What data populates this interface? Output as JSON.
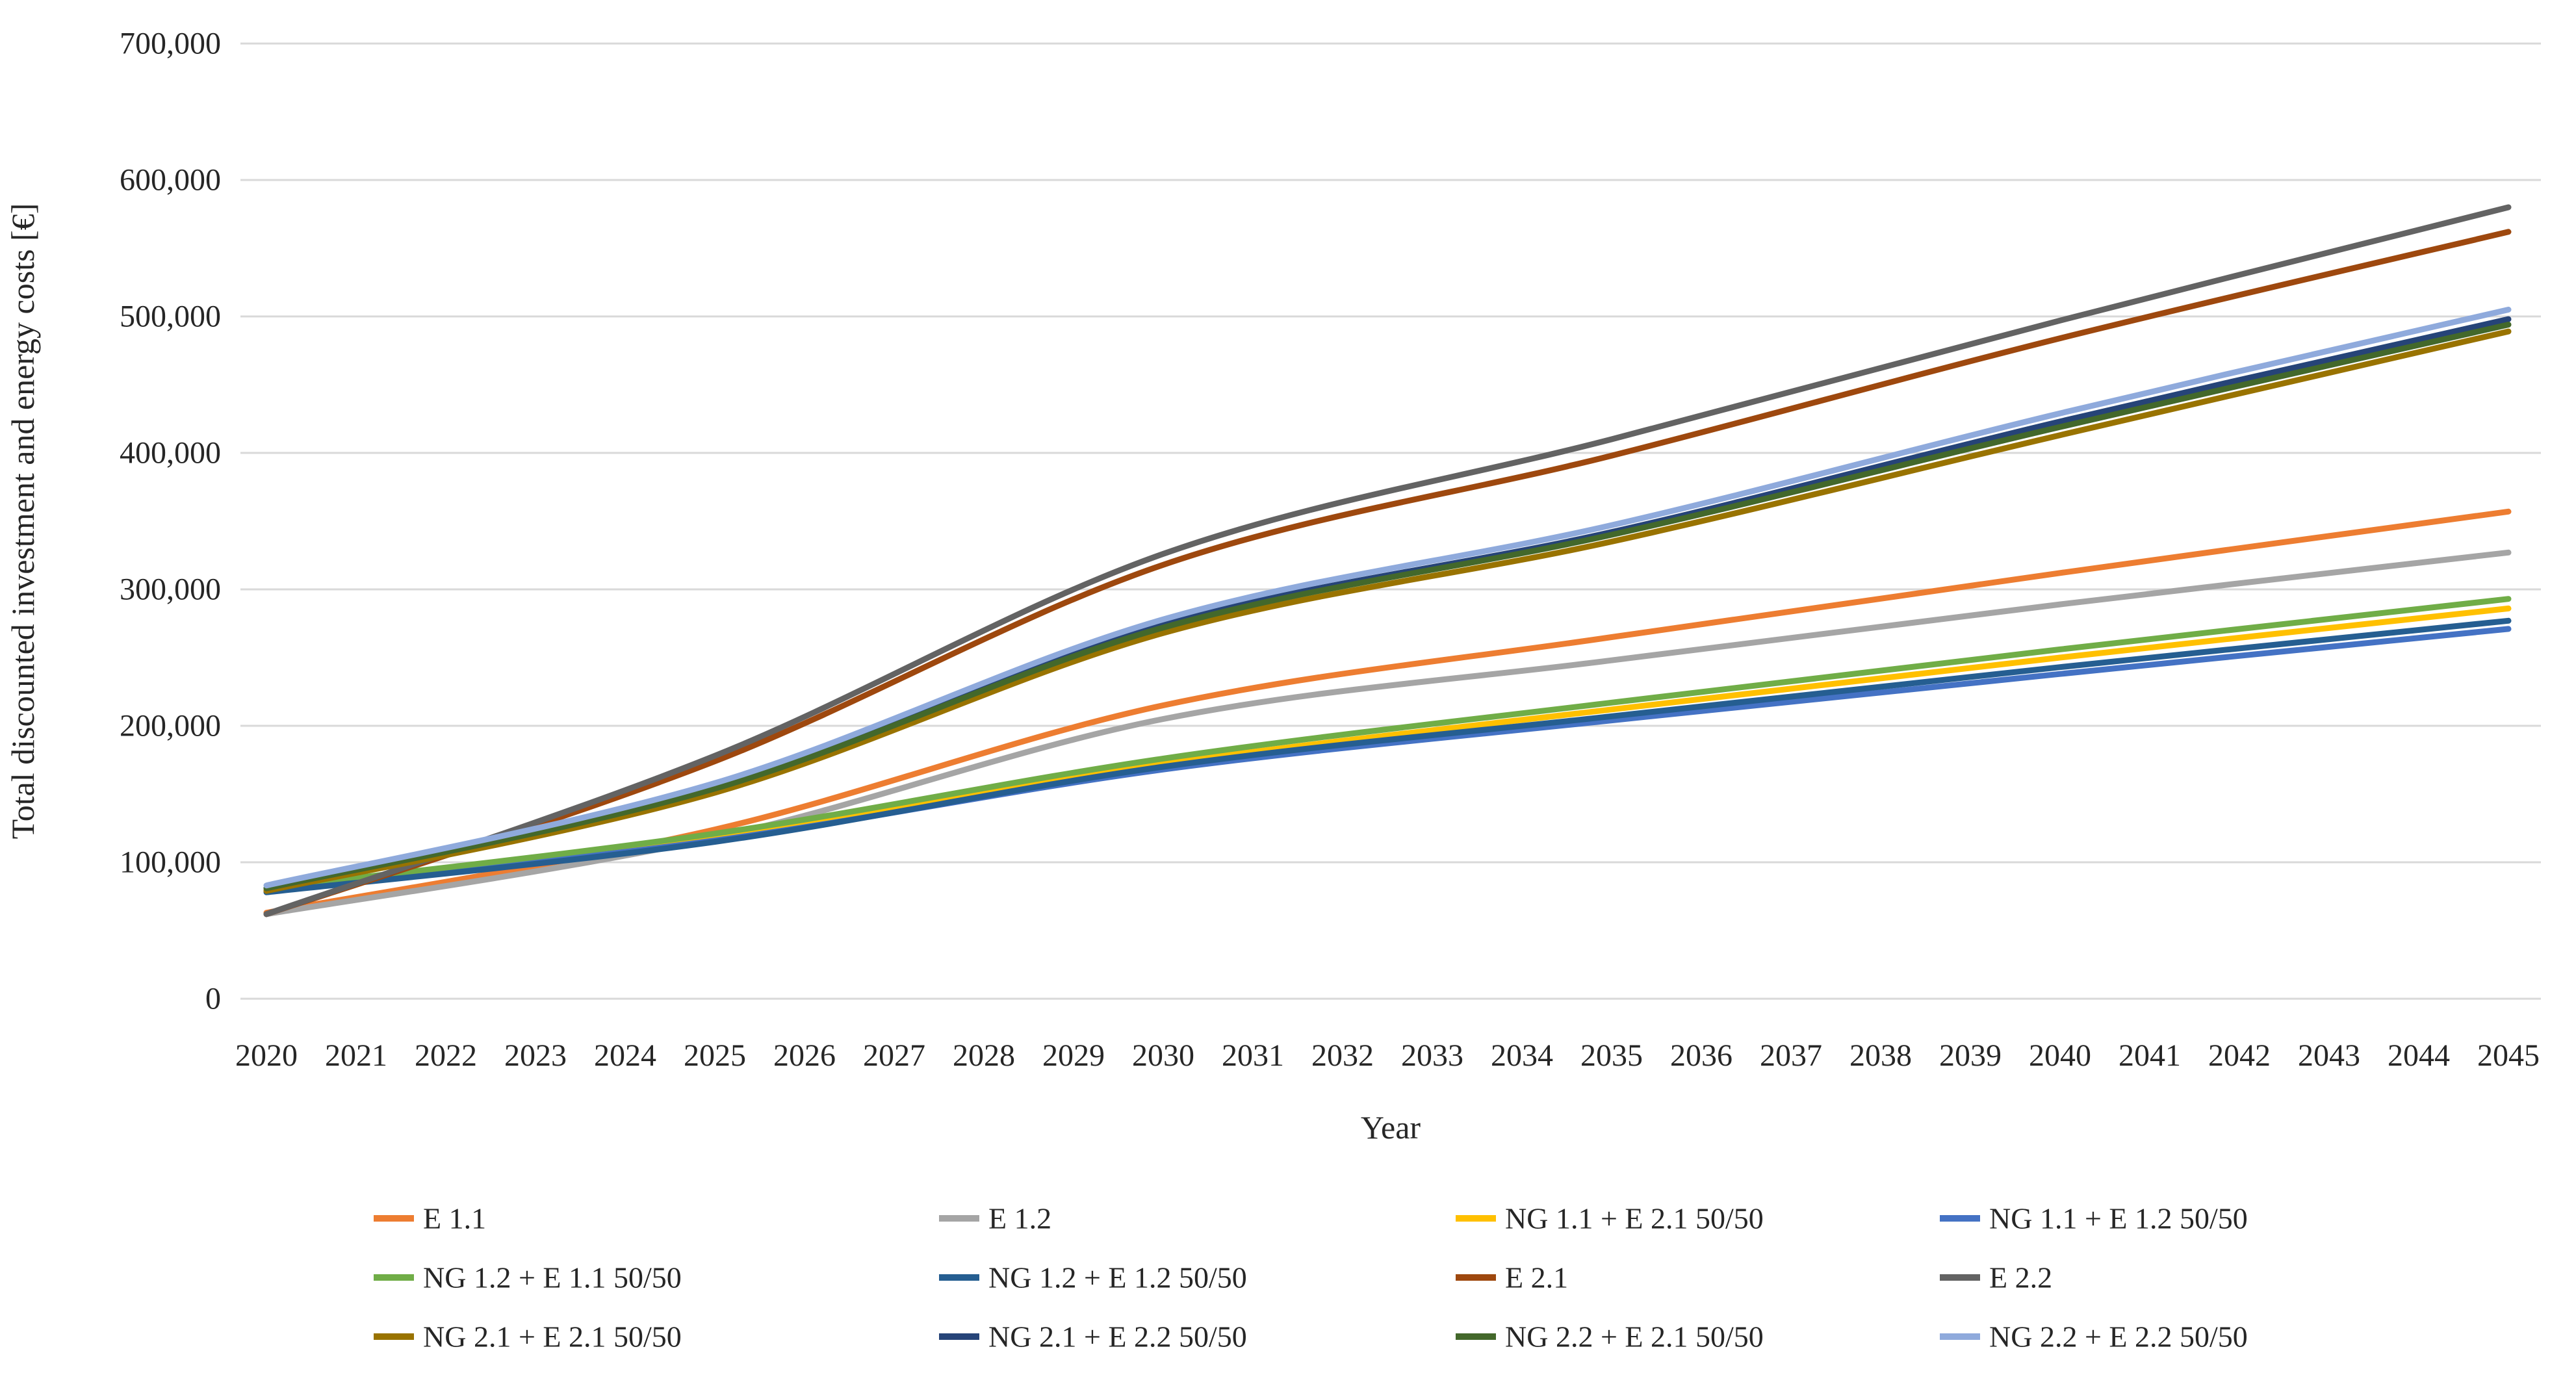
{
  "figure": {
    "background": "#ffffff",
    "gridline_color": "#D9D9D9",
    "text_color": "#262626"
  },
  "y_axis": {
    "title": "Total discounted investment and energy costs [€]",
    "tick_labels": [
      "0",
      "100,000",
      "200,000",
      "300,000",
      "400,000",
      "500,000",
      "600,000",
      "700,000"
    ],
    "min": 0,
    "max": 700000,
    "step": 100000
  },
  "x_axis": {
    "title": "Year",
    "tick_labels": [
      "2020",
      "2021",
      "2022",
      "2023",
      "2024",
      "2025",
      "2026",
      "2027",
      "2028",
      "2029",
      "2030",
      "2031",
      "2032",
      "2033",
      "2034",
      "2035",
      "2036",
      "2037",
      "2038",
      "2039",
      "2040",
      "2041",
      "2042",
      "2043",
      "2044",
      "2045"
    ]
  },
  "chart_data": {
    "type": "line",
    "title": "",
    "xlabel": "Year",
    "ylabel": "Total discounted investment and energy costs [€]",
    "x_anchor_years": [
      2020,
      2025,
      2030,
      2035,
      2040,
      2045
    ],
    "x_range": [
      2020,
      2045
    ],
    "ylim": [
      0,
      700000
    ],
    "grid": "horizontal",
    "legend_position": "bottom",
    "legend_columns": 4,
    "series": [
      {
        "name": "E 1.1",
        "color": "#ED7D31",
        "values": [
          63000,
          124000,
          215000,
          265000,
          312000,
          357000
        ]
      },
      {
        "name": "E 1.2",
        "color": "#A5A5A5",
        "values": [
          62000,
          118000,
          205000,
          248000,
          289000,
          327000
        ]
      },
      {
        "name": "NG 1.1 + E 2.1 50/50",
        "color": "#FFC000",
        "values": [
          80000,
          119000,
          172000,
          212000,
          250000,
          286000
        ]
      },
      {
        "name": "NG 1.1 + E 1.2 50/50",
        "color": "#4472C4",
        "values": [
          79000,
          116000,
          168000,
          204000,
          238000,
          271000
        ]
      },
      {
        "name": "NG 1.2 + E 1.1 50/50",
        "color": "#70AD47",
        "values": [
          81000,
          121000,
          176000,
          217000,
          256000,
          293000
        ]
      },
      {
        "name": "NG 1.2 + E 1.2 50/50",
        "color": "#255E91",
        "values": [
          78000,
          115000,
          170000,
          207000,
          243000,
          277000
        ]
      },
      {
        "name": "E 2.1",
        "color": "#9E480E",
        "values": [
          62000,
          174000,
          318000,
          398000,
          484000,
          562000
        ]
      },
      {
        "name": "E 2.2",
        "color": "#636363",
        "values": [
          62000,
          178000,
          326000,
          410000,
          497000,
          580000
        ]
      },
      {
        "name": "NG 2.1 + E 2.1 50/50",
        "color": "#997300",
        "values": [
          79000,
          151000,
          268000,
          335000,
          413000,
          489000
        ]
      },
      {
        "name": "NG 2.1 + E 2.2 50/50",
        "color": "#264478",
        "values": [
          81000,
          155000,
          274000,
          342000,
          423000,
          498000
        ]
      },
      {
        "name": "NG 2.2 + E 2.1 50/50",
        "color": "#43682B",
        "values": [
          81000,
          154000,
          272000,
          340000,
          419000,
          494000
        ]
      },
      {
        "name": "NG 2.2 + E 2.2 50/50",
        "color": "#8FAADC",
        "values": [
          83000,
          158000,
          278000,
          347000,
          429000,
          505000
        ]
      }
    ]
  }
}
